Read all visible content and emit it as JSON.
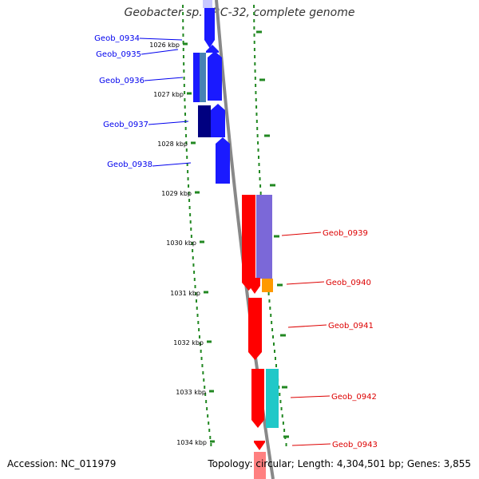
{
  "title": "Geobacter sp. FRC-32, complete genome",
  "footer": {
    "accession": "Accession: NC_011979",
    "summary": "Topology: circular; Length: 4,304,501 bp; Genes: 3,855"
  },
  "ticks": [
    "1026 kbp",
    "1027 kbp",
    "1028 kbp",
    "1029 kbp",
    "1030 kbp",
    "1031 kbp",
    "1032 kbp",
    "1033 kbp",
    "1034 kbp"
  ],
  "genes_forward": [
    {
      "label": "Geob_0934",
      "color": "#0000ee"
    },
    {
      "label": "Geob_0935",
      "color": "#0000ee"
    },
    {
      "label": "Geob_0936",
      "color": "#0000ee"
    },
    {
      "label": "Geob_0937",
      "color": "#0000ee"
    },
    {
      "label": "Geob_0938",
      "color": "#0000ee"
    }
  ],
  "genes_reverse": [
    {
      "label": "Geob_0939",
      "color": "#dd0000"
    },
    {
      "label": "Geob_0940",
      "color": "#dd0000"
    },
    {
      "label": "Geob_0941",
      "color": "#dd0000"
    },
    {
      "label": "Geob_0942",
      "color": "#dd0000"
    },
    {
      "label": "Geob_0943",
      "color": "#dd0000"
    }
  ],
  "colors": {
    "forward_gene": "#1a1aff",
    "reverse_gene": "#ff0000",
    "backbone": "#888888",
    "gc_dots": "#228822",
    "domain_purple": "#7b68d8",
    "domain_orange": "#ff9900",
    "domain_cyan": "#20c8c8",
    "domain_navy": "#000080",
    "domain_steel": "#4682b4"
  }
}
